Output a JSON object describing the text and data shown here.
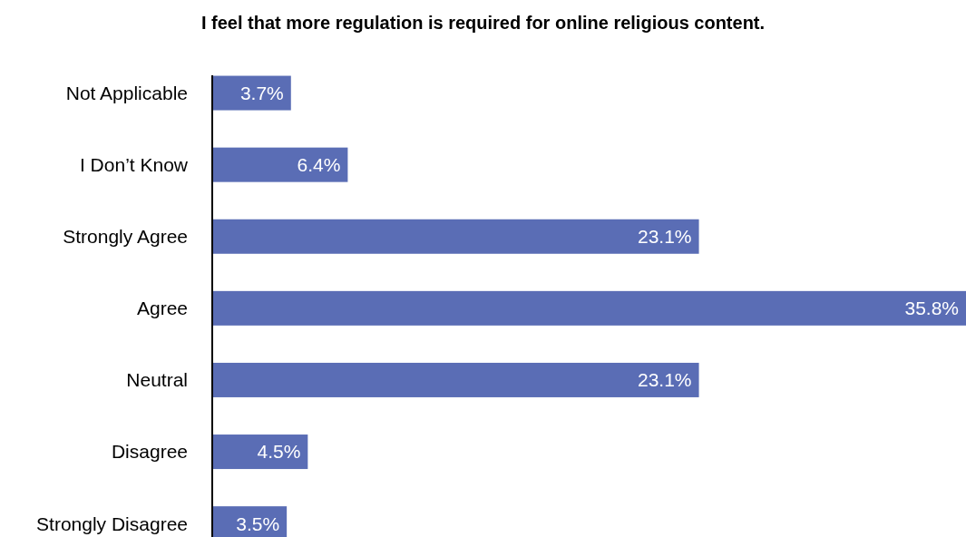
{
  "chart_data": {
    "type": "bar",
    "orientation": "horizontal",
    "title": "I feel that more regulation is required for online religious content.",
    "categories": [
      "Not Applicable",
      "I Don’t Know",
      "Strongly Agree",
      "Agree",
      "Neutral",
      "Disagree",
      "Strongly Disagree"
    ],
    "values": [
      3.7,
      6.4,
      23.1,
      35.8,
      23.1,
      4.5,
      3.5
    ],
    "value_labels": [
      "3.7%",
      "6.4%",
      "23.1%",
      "35.8%",
      "23.1%",
      "4.5%",
      "3.5%"
    ],
    "color": "#5a6db5",
    "tick_labels": "y"
  }
}
